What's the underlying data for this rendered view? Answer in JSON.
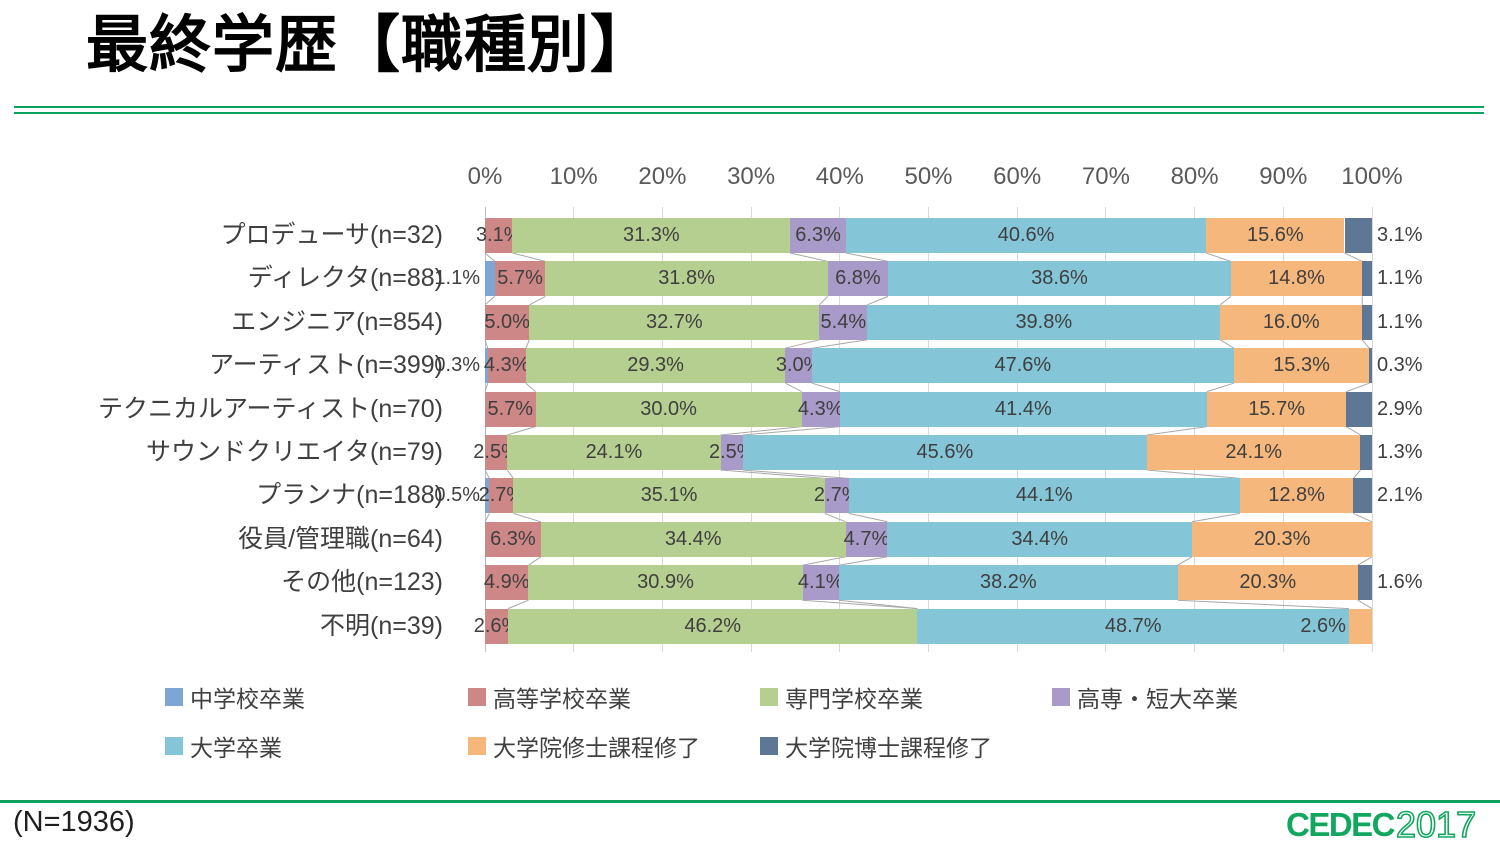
{
  "chart_data": {
    "type": "bar",
    "orientation": "horizontal-stacked",
    "title": "最終学歴【職種別】",
    "legend_position": "bottom",
    "x_axis": {
      "min": 0,
      "max": 100,
      "grid": true,
      "ticks": [
        "0%",
        "10%",
        "20%",
        "30%",
        "40%",
        "50%",
        "60%",
        "70%",
        "80%",
        "90%",
        "100%"
      ]
    },
    "categories": [
      "プロデューサ(n=32)",
      "ディレクタ(n=88)",
      "エンジニア(n=854)",
      "アーティスト(n=399)",
      "テクニカルアーティスト(n=70)",
      "サウンドクリエイタ(n=79)",
      "プランナ(n=188)",
      "役員/管理職(n=64)",
      "その他(n=123)",
      "不明(n=39)"
    ],
    "series": [
      {
        "name": "中学校卒業",
        "color": "#7ea6d4",
        "values": [
          0,
          1.1,
          0,
          0.3,
          0,
          0,
          0.5,
          0,
          0,
          0
        ]
      },
      {
        "name": "高等学校卒業",
        "color": "#cd8786",
        "values": [
          3.1,
          5.7,
          5.0,
          4.3,
          5.7,
          2.5,
          2.7,
          6.3,
          4.9,
          2.6
        ]
      },
      {
        "name": "専門学校卒業",
        "color": "#b5cf90",
        "values": [
          31.3,
          31.8,
          32.7,
          29.3,
          30.0,
          24.1,
          35.1,
          34.4,
          30.9,
          46.2
        ]
      },
      {
        "name": "高専・短大卒業",
        "color": "#a99bc9",
        "values": [
          6.3,
          6.8,
          5.4,
          3.0,
          4.3,
          2.5,
          2.7,
          4.7,
          4.1,
          0
        ]
      },
      {
        "name": "大学卒業",
        "color": "#84c6d8",
        "values": [
          40.6,
          38.6,
          39.8,
          47.6,
          41.4,
          45.6,
          44.1,
          34.4,
          38.2,
          48.7
        ]
      },
      {
        "name": "大学院修士課程修了",
        "color": "#f5b77c",
        "values": [
          15.6,
          14.8,
          16.0,
          15.3,
          15.7,
          24.1,
          12.8,
          20.3,
          20.3,
          2.6
        ]
      },
      {
        "name": "大学院博士課程修了",
        "color": "#5e7795",
        "values": [
          3.1,
          1.1,
          1.1,
          0.3,
          2.9,
          1.3,
          2.1,
          0,
          1.6,
          0
        ]
      }
    ],
    "data_label_format": "0.0%",
    "grid_color": "#d9d9d9",
    "connector_line_color": "#a8a8a8"
  },
  "footer": {
    "n_label": "(N=1936)",
    "logo": {
      "brand": "CEDEC",
      "year": "2017"
    }
  },
  "theme": {
    "accent_green": "#0aa25c",
    "logo_green": "#12a75f"
  }
}
